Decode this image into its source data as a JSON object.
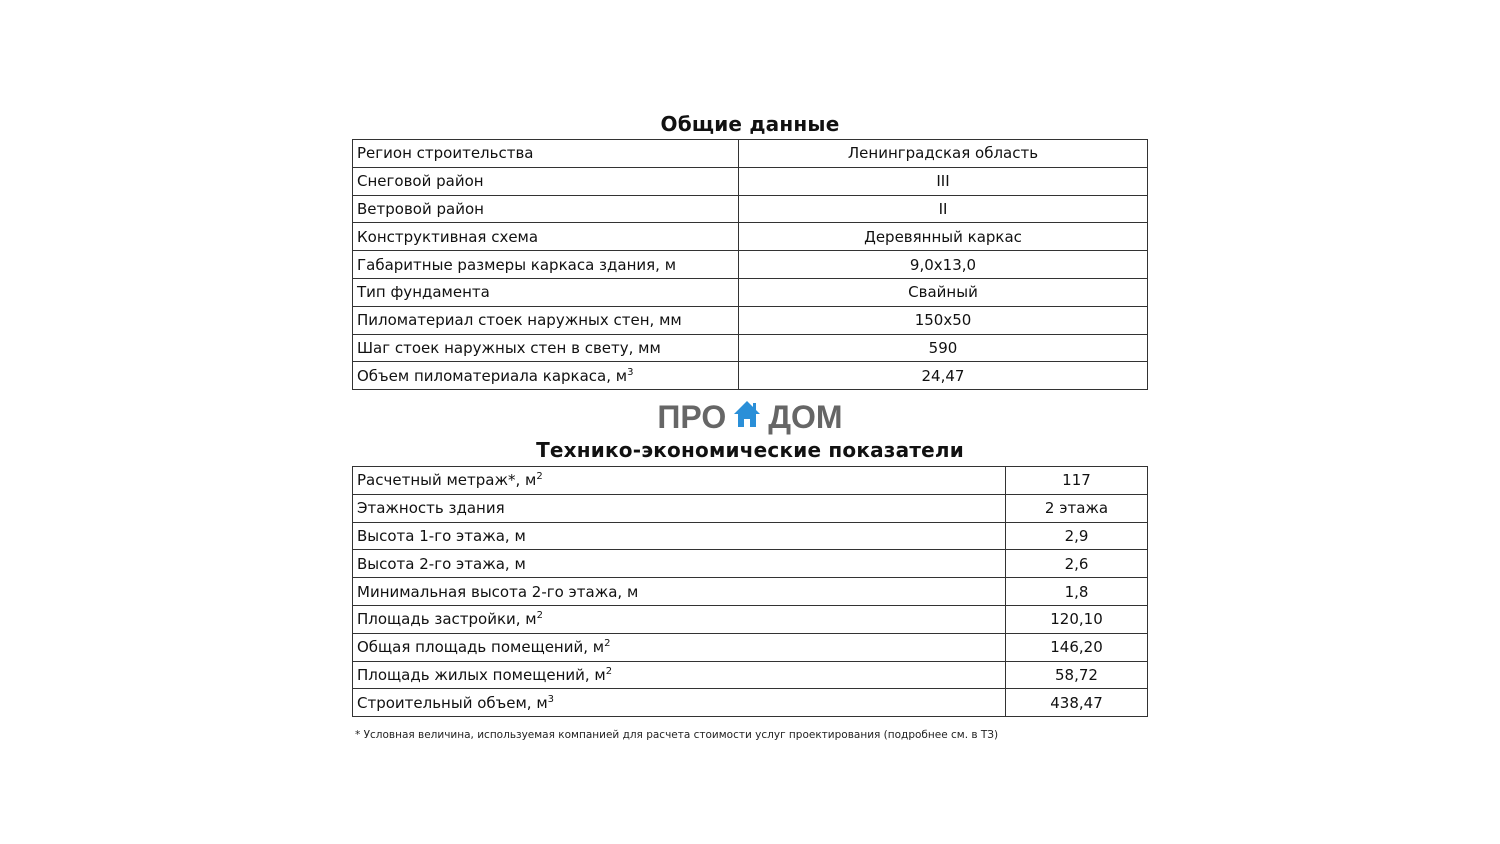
{
  "general": {
    "title": "Общие данные",
    "rows": [
      {
        "label": "Регион строительства",
        "value": "Ленинградская область"
      },
      {
        "label": "Снеговой район",
        "value": "III"
      },
      {
        "label": "Ветровой район",
        "value": "II"
      },
      {
        "label": "Конструктивная схема",
        "value": "Деревянный каркас"
      },
      {
        "label": "Габаритные размеры каркаса здания, м",
        "value": "9,0х13,0"
      },
      {
        "label": "Тип фундамента",
        "value": "Свайный"
      },
      {
        "label": "Пиломатериал стоек наружных стен, мм",
        "value": "150х50"
      },
      {
        "label": "Шаг стоек наружных стен в свету, мм",
        "value": "590"
      },
      {
        "label": "Объем пиломатериала каркаса, м",
        "sup": "3",
        "value": "24,47"
      }
    ]
  },
  "logo": {
    "left": "ПРО",
    "right": "ДОМ",
    "color_text": "#666666",
    "color_house": "#2a8fd8"
  },
  "tech": {
    "title": "Технико-экономические показатели",
    "rows": [
      {
        "label": "Расчетный метраж*, м",
        "sup": "2",
        "value": "117"
      },
      {
        "label": "Этажность здания",
        "value": "2 этажа"
      },
      {
        "label": "Высота 1-го этажа, м",
        "value": "2,9"
      },
      {
        "label": "Высота 2-го этажа, м",
        "value": "2,6"
      },
      {
        "label": "Минимальная высота 2-го этажа, м",
        "value": "1,8"
      },
      {
        "label": "Площадь застройки, м",
        "sup": "2",
        "value": "120,10"
      },
      {
        "label": "Общая площадь помещений, м",
        "sup": "2",
        "value": "146,20"
      },
      {
        "label": "Площадь жилых помещений, м",
        "sup": "2",
        "value": "58,72"
      },
      {
        "label": "Строительный объем, м",
        "sup": "3",
        "value": "438,47"
      }
    ],
    "footnote": "* Условная величина, используемая компанией для расчета стоимости услуг проектирования (подробнее см. в ТЗ)"
  }
}
